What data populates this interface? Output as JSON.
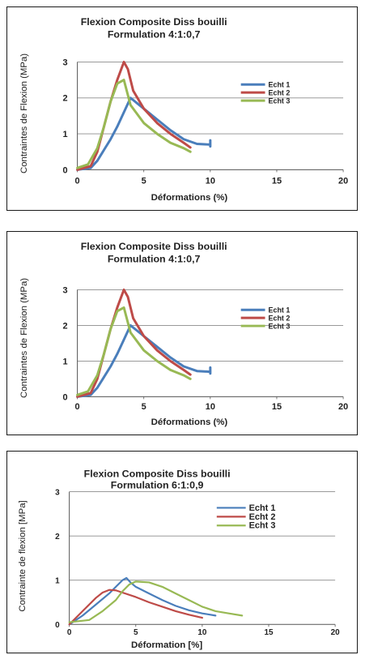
{
  "chart_data": [
    {
      "type": "line",
      "title": "Flexion Composite Diss bouilli",
      "subtitle": "Formulation 4:1:0,7",
      "xlabel": "Déformations  (%)",
      "ylabel": "Contraintes de Flexion (MPa)",
      "xlim": [
        0,
        20
      ],
      "ylim": [
        0,
        3
      ],
      "xticks": [
        "0",
        "5",
        "10",
        "15",
        "20"
      ],
      "yticks": [
        "0",
        "1",
        "2",
        "3"
      ],
      "grid": true,
      "legend_position": "right",
      "series": [
        {
          "name": "Echt 1",
          "color": "#4a7ebb",
          "x": [
            0,
            1,
            1.5,
            2,
            2.5,
            3,
            3.5,
            4,
            4.5,
            5,
            6,
            7,
            8,
            9,
            10,
            10,
            10
          ],
          "y": [
            0,
            0.05,
            0.25,
            0.55,
            0.85,
            1.2,
            1.6,
            2.0,
            1.85,
            1.7,
            1.4,
            1.1,
            0.85,
            0.72,
            0.7,
            0.82,
            0.65
          ]
        },
        {
          "name": "Echt 2",
          "color": "#be4b48",
          "x": [
            0,
            1,
            1.5,
            2,
            2.5,
            3,
            3.5,
            3.8,
            4.2,
            5,
            6,
            7,
            8,
            8.5
          ],
          "y": [
            0,
            0.1,
            0.5,
            1.2,
            1.9,
            2.5,
            3.0,
            2.8,
            2.2,
            1.7,
            1.3,
            1.0,
            0.75,
            0.62
          ]
        },
        {
          "name": "Echt 3",
          "color": "#98b954",
          "x": [
            0,
            0.8,
            1.5,
            2,
            2.5,
            3,
            3.5,
            4,
            5,
            6,
            7,
            8,
            8.5
          ],
          "y": [
            0.05,
            0.15,
            0.6,
            1.2,
            1.9,
            2.4,
            2.5,
            1.8,
            1.3,
            1.0,
            0.75,
            0.6,
            0.5
          ]
        }
      ]
    },
    {
      "type": "line",
      "title": "Flexion Composite Diss bouilli",
      "subtitle": "Formulation 4:1:0,7",
      "xlabel": "Déformations  (%)",
      "ylabel": "Contraintes de Flexion (MPa)",
      "xlim": [
        0,
        20
      ],
      "ylim": [
        0,
        3
      ],
      "xticks": [
        "0",
        "5",
        "10",
        "15",
        "20"
      ],
      "yticks": [
        "0",
        "1",
        "2",
        "3"
      ],
      "grid": true,
      "legend_position": "right",
      "series": [
        {
          "name": "Echt 1",
          "color": "#4a7ebb",
          "x": [
            0,
            1,
            1.5,
            2,
            2.5,
            3,
            3.5,
            4,
            4.5,
            5,
            6,
            7,
            8,
            9,
            10,
            10,
            10
          ],
          "y": [
            0,
            0.05,
            0.25,
            0.55,
            0.85,
            1.2,
            1.6,
            2.0,
            1.85,
            1.7,
            1.4,
            1.1,
            0.85,
            0.72,
            0.7,
            0.82,
            0.65
          ]
        },
        {
          "name": "Echt 2",
          "color": "#be4b48",
          "x": [
            0,
            1,
            1.5,
            2,
            2.5,
            3,
            3.5,
            3.8,
            4.2,
            5,
            6,
            7,
            8,
            8.5
          ],
          "y": [
            0,
            0.1,
            0.5,
            1.2,
            1.9,
            2.5,
            3.0,
            2.8,
            2.2,
            1.7,
            1.3,
            1.0,
            0.75,
            0.62
          ]
        },
        {
          "name": "Echt 3",
          "color": "#98b954",
          "x": [
            0,
            0.8,
            1.5,
            2,
            2.5,
            3,
            3.5,
            4,
            5,
            6,
            7,
            8,
            8.5
          ],
          "y": [
            0.05,
            0.15,
            0.6,
            1.2,
            1.9,
            2.4,
            2.5,
            1.8,
            1.3,
            1.0,
            0.75,
            0.6,
            0.5
          ]
        }
      ]
    },
    {
      "type": "line",
      "title": "Flexion Composite Diss bouilli",
      "subtitle": "Formulation  6:1:0,9",
      "xlabel": "Déformation [%]",
      "ylabel": "Contrainte de flexion [MPa]",
      "xlim": [
        0,
        20
      ],
      "ylim": [
        0,
        3
      ],
      "xticks": [
        "0",
        "5",
        "10",
        "15",
        "20"
      ],
      "yticks": [
        "0",
        "1",
        "2",
        "3"
      ],
      "grid": true,
      "legend_position": "top-right",
      "series": [
        {
          "name": "Echt 1",
          "color": "#4a7ebb",
          "x": [
            0,
            1,
            2,
            3,
            3.5,
            4,
            4.3,
            4.6,
            5,
            6,
            7,
            8,
            9,
            10,
            11
          ],
          "y": [
            0,
            0.2,
            0.45,
            0.7,
            0.85,
            1.0,
            1.05,
            0.95,
            0.85,
            0.7,
            0.55,
            0.42,
            0.32,
            0.25,
            0.2
          ]
        },
        {
          "name": "Echt 2",
          "color": "#be4b48",
          "x": [
            0,
            1,
            2,
            2.5,
            3,
            3.5,
            4,
            5,
            6,
            7,
            8,
            9,
            10
          ],
          "y": [
            0,
            0.3,
            0.6,
            0.72,
            0.78,
            0.77,
            0.72,
            0.62,
            0.5,
            0.4,
            0.3,
            0.22,
            0.15
          ]
        },
        {
          "name": "Echt 3",
          "color": "#98b954",
          "x": [
            0,
            1.5,
            2.5,
            3.5,
            4,
            4.5,
            5,
            6,
            7,
            8,
            9,
            10,
            11,
            12,
            13
          ],
          "y": [
            0.05,
            0.1,
            0.3,
            0.55,
            0.75,
            0.9,
            0.97,
            0.95,
            0.85,
            0.7,
            0.55,
            0.4,
            0.3,
            0.25,
            0.2
          ]
        }
      ]
    }
  ]
}
